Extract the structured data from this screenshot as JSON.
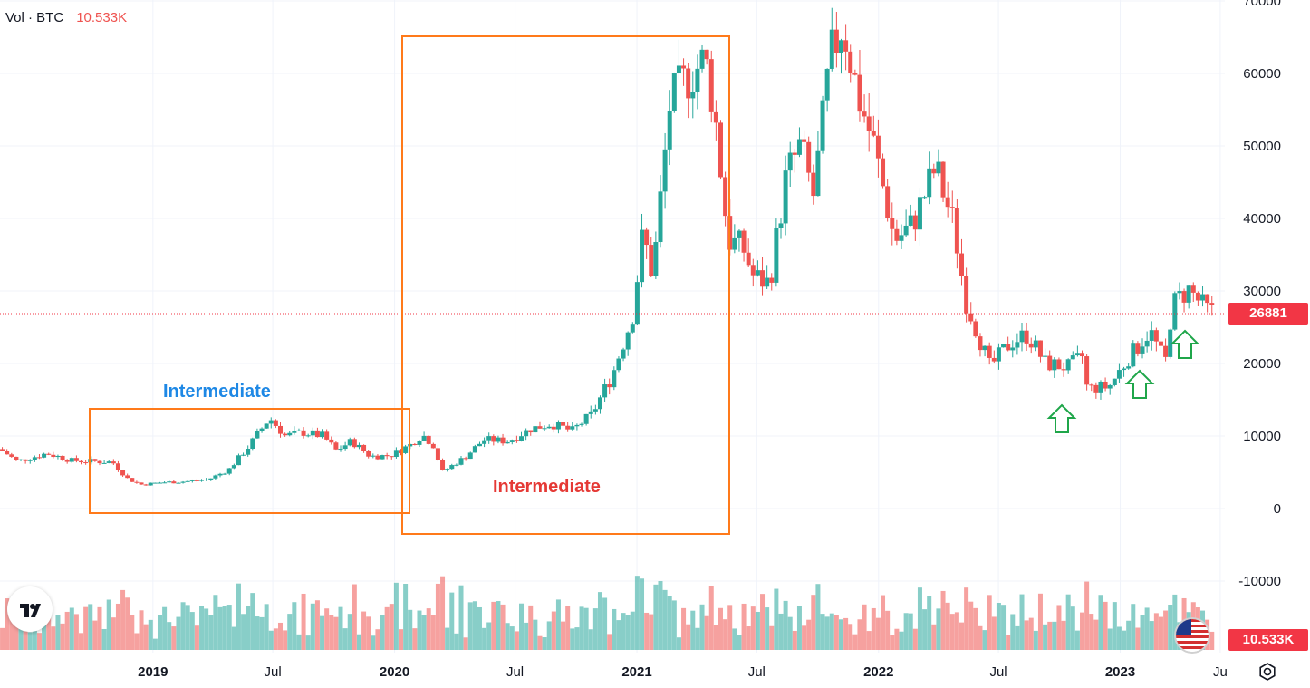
{
  "header": {
    "vol_label": "Vol · BTC",
    "vol_value": "10.533K",
    "vol_color": "#ef5350"
  },
  "price_tags": {
    "last_price": "26881",
    "last_price_color": "#f23645",
    "volume": "10.533K",
    "volume_color": "#f23645"
  },
  "annotations": {
    "box1_label": "Intermediate",
    "box1_color": "#1e88e5",
    "box2_label": "Intermediate",
    "box2_color": "#e53935",
    "box_stroke": "#ff7a1a",
    "arrow_color": "#1fa64a"
  },
  "icons": {
    "logo": "tradingview-logo-icon",
    "flag": "us-flag-icon",
    "settings": "gear-icon"
  },
  "chart_data": {
    "type": "candlestick",
    "symbol": "BTC",
    "interval": "weekly",
    "up_color": "#26a69a",
    "down_color": "#ef5350",
    "y_ticks": [
      70000,
      60000,
      50000,
      40000,
      30000,
      20000,
      10000,
      0,
      -10000
    ],
    "y_range": [
      -19500,
      70000
    ],
    "x_ticks": [
      "2019",
      "Jul",
      "2020",
      "Jul",
      "2021",
      "Jul",
      "2022",
      "Jul",
      "2023",
      "Ju"
    ],
    "x_tick_dates": [
      "2019-01-01",
      "2019-07-01",
      "2020-01-01",
      "2020-07-01",
      "2021-01-01",
      "2021-07-01",
      "2022-01-01",
      "2022-07-01",
      "2023-01-01",
      "2023-06-01"
    ],
    "x_range": [
      "2018-05-15",
      "2023-06-08"
    ],
    "last_price": 26881,
    "last_volume": "10.533K",
    "close_path": [
      [
        "2018-05-15",
        8200
      ],
      [
        "2018-06-10",
        6500
      ],
      [
        "2018-07-25",
        7600
      ],
      [
        "2018-09-01",
        6600
      ],
      [
        "2018-11-01",
        6400
      ],
      [
        "2018-11-25",
        4000
      ],
      [
        "2018-12-15",
        3300
      ],
      [
        "2019-01-15",
        3600
      ],
      [
        "2019-02-15",
        3700
      ],
      [
        "2019-03-25",
        4000
      ],
      [
        "2019-04-25",
        5300
      ],
      [
        "2019-05-25",
        8500
      ],
      [
        "2019-06-26",
        12500
      ],
      [
        "2019-07-20",
        10000
      ],
      [
        "2019-08-15",
        10500
      ],
      [
        "2019-09-15",
        10000
      ],
      [
        "2019-10-05",
        8000
      ],
      [
        "2019-10-28",
        9300
      ],
      [
        "2019-11-25",
        7200
      ],
      [
        "2019-12-25",
        7300
      ],
      [
        "2020-01-25",
        8800
      ],
      [
        "2020-02-12",
        10200
      ],
      [
        "2020-03-01",
        8600
      ],
      [
        "2020-03-12",
        5000
      ],
      [
        "2020-04-15",
        7000
      ],
      [
        "2020-05-15",
        9500
      ],
      [
        "2020-06-20",
        9300
      ],
      [
        "2020-07-25",
        11000
      ],
      [
        "2020-08-25",
        11700
      ],
      [
        "2020-09-25",
        10700
      ],
      [
        "2020-10-25",
        13000
      ],
      [
        "2020-11-25",
        18500
      ],
      [
        "2020-12-25",
        26500
      ],
      [
        "2021-01-10",
        38000
      ],
      [
        "2021-01-25",
        32000
      ],
      [
        "2021-02-20",
        56000
      ],
      [
        "2021-03-15",
        59000
      ],
      [
        "2021-04-14",
        62000
      ],
      [
        "2021-04-28",
        55000
      ],
      [
        "2021-05-19",
        37000
      ],
      [
        "2021-06-10",
        36000
      ],
      [
        "2021-06-26",
        32000
      ],
      [
        "2021-07-20",
        31000
      ],
      [
        "2021-08-15",
        46000
      ],
      [
        "2021-09-05",
        50000
      ],
      [
        "2021-09-25",
        43000
      ],
      [
        "2021-10-20",
        62000
      ],
      [
        "2021-11-08",
        67000
      ],
      [
        "2021-12-01",
        57000
      ],
      [
        "2021-12-25",
        50000
      ],
      [
        "2022-01-25",
        37000
      ],
      [
        "2022-02-20",
        39000
      ],
      [
        "2022-03-28",
        47000
      ],
      [
        "2022-04-25",
        39000
      ],
      [
        "2022-05-12",
        29000
      ],
      [
        "2022-06-18",
        19500
      ],
      [
        "2022-07-20",
        23000
      ],
      [
        "2022-08-14",
        24000
      ],
      [
        "2022-09-10",
        20000
      ],
      [
        "2022-10-15",
        19500
      ],
      [
        "2022-11-05",
        21000
      ],
      [
        "2022-11-12",
        16500
      ],
      [
        "2022-12-15",
        16800
      ],
      [
        "2023-01-15",
        21000
      ],
      [
        "2023-02-15",
        24500
      ],
      [
        "2023-03-10",
        20000
      ],
      [
        "2023-03-20",
        28000
      ],
      [
        "2023-04-14",
        30300
      ],
      [
        "2023-05-10",
        27500
      ],
      [
        "2023-05-25",
        26881
      ]
    ]
  }
}
